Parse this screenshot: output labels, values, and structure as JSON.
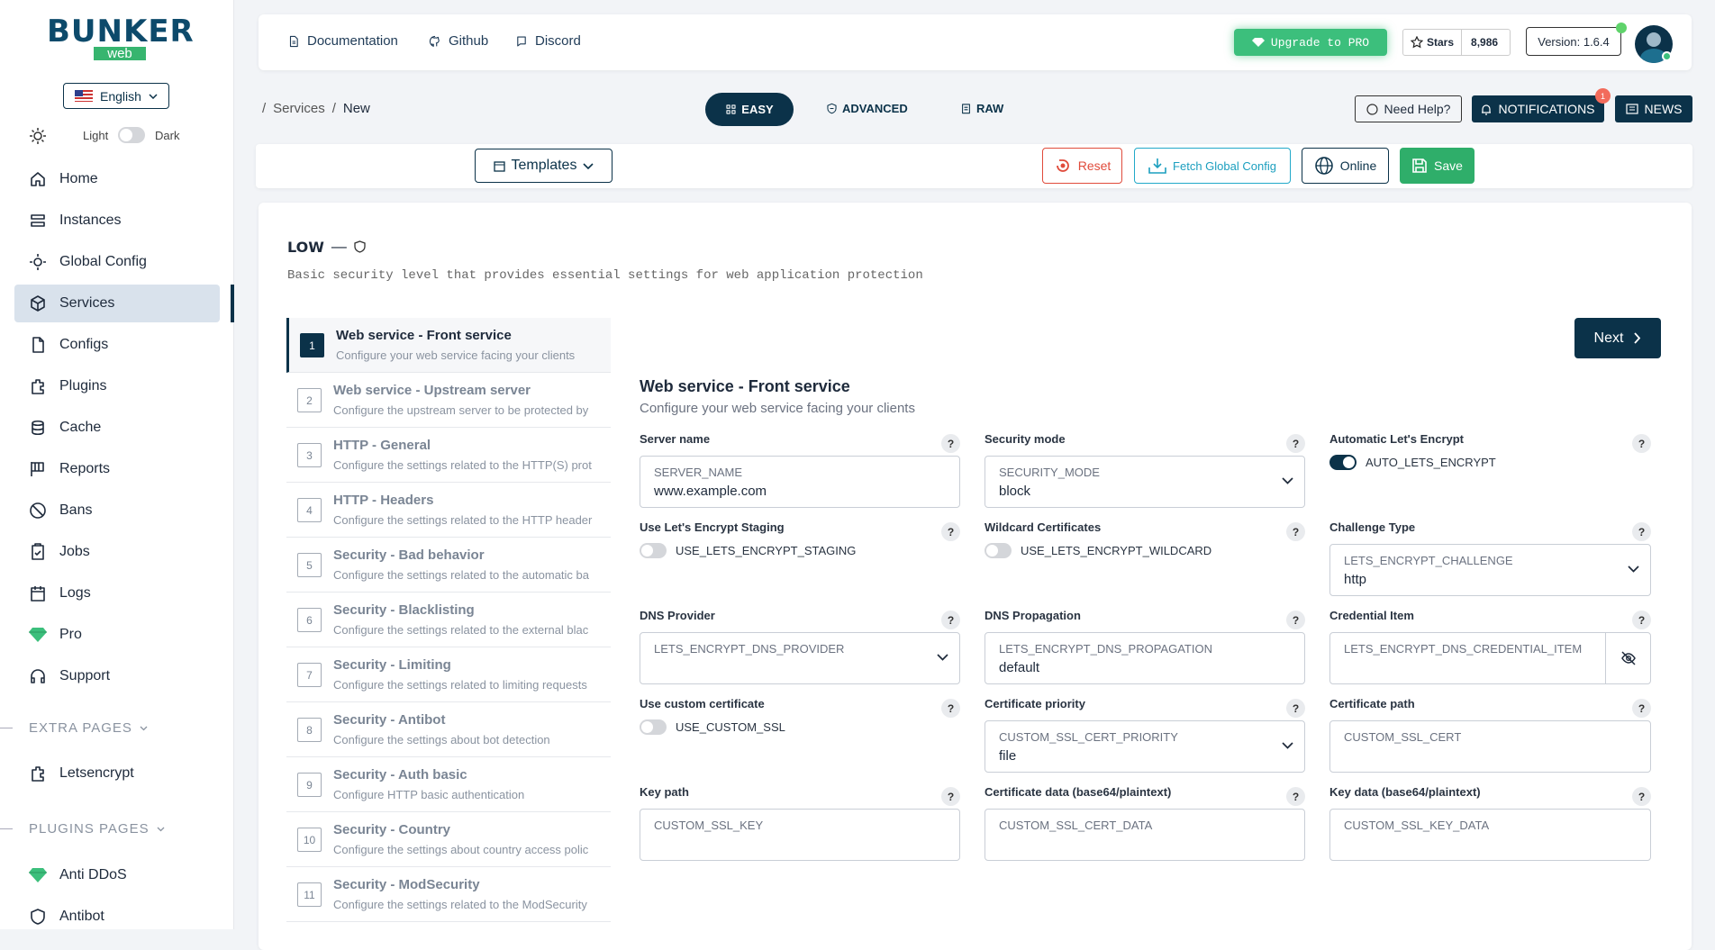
{
  "sidebar": {
    "logo": {
      "title": "BUNKER",
      "subtitle": "web"
    },
    "language": "English",
    "theme": {
      "light": "Light",
      "dark": "Dark"
    },
    "nav": [
      "Home",
      "Instances",
      "Global Config",
      "Services",
      "Configs",
      "Plugins",
      "Cache",
      "Reports",
      "Bans",
      "Jobs",
      "Logs",
      "Pro",
      "Support"
    ],
    "extra_pages": {
      "title": "EXTRA PAGES",
      "items": [
        "Letsencrypt"
      ]
    },
    "plugins_pages": {
      "title": "PLUGINS PAGES",
      "items": [
        "Anti DDoS",
        "Antibot"
      ]
    }
  },
  "topbar": {
    "links": [
      "Documentation",
      "Github",
      "Discord"
    ],
    "upgrade": "Upgrade to PRO",
    "stars_label": "Stars",
    "stars_count": "8,986",
    "version": "Version: 1.6.4"
  },
  "breadcrumb": {
    "separator": "/",
    "items": [
      "Services",
      "New"
    ]
  },
  "modes": [
    "EASY",
    "ADVANCED",
    "RAW"
  ],
  "header_buttons": {
    "help": "Need Help?",
    "notifications": "NOTIFICATIONS",
    "notification_badge": "1",
    "news": "NEWS"
  },
  "toolbar": {
    "templates": "Templates",
    "reset": "Reset",
    "fetch": "Fetch Global Config",
    "online": "Online",
    "save": "Save"
  },
  "template": {
    "title": "LOW",
    "separator": "—",
    "description": "Basic security level that provides essential settings for web application protection"
  },
  "steps": [
    {
      "number": 1,
      "title": "Web service - Front service",
      "description": "Configure your web service facing your clients"
    },
    {
      "number": 2,
      "title": "Web service - Upstream server",
      "description": "Configure the upstream server to be protected by"
    },
    {
      "number": 3,
      "title": "HTTP - General",
      "description": "Configure the settings related to the HTTP(S) prot"
    },
    {
      "number": 4,
      "title": "HTTP - Headers",
      "description": "Configure the settings related to the HTTP header"
    },
    {
      "number": 5,
      "title": "Security - Bad behavior",
      "description": "Configure the settings related to the automatic ba"
    },
    {
      "number": 6,
      "title": "Security - Blacklisting",
      "description": "Configure the settings related to the external blac"
    },
    {
      "number": 7,
      "title": "Security - Limiting",
      "description": "Configure the settings related to limiting requests"
    },
    {
      "number": 8,
      "title": "Security - Antibot",
      "description": "Configure the settings about bot detection"
    },
    {
      "number": 9,
      "title": "Security - Auth basic",
      "description": "Configure HTTP basic authentication"
    },
    {
      "number": 10,
      "title": "Security - Country",
      "description": "Configure the settings about country access polic"
    },
    {
      "number": 11,
      "title": "Security - ModSecurity",
      "description": "Configure the settings related to the ModSecurity"
    }
  ],
  "next": "Next",
  "form": {
    "title": "Web service - Front service",
    "description": "Configure your web service facing your clients",
    "help_icon": "?",
    "fields": [
      {
        "label": "Server name",
        "kind": "input",
        "setting": "SERVER_NAME",
        "value": "www.example.com"
      },
      {
        "label": "Security mode",
        "kind": "select",
        "setting": "SECURITY_MODE",
        "value": "block"
      },
      {
        "label": "Automatic Let's Encrypt",
        "kind": "toggle",
        "setting": "AUTO_LETS_ENCRYPT",
        "checked": true
      },
      {
        "label": "Use Let's Encrypt Staging",
        "kind": "toggle",
        "setting": "USE_LETS_ENCRYPT_STAGING",
        "checked": false
      },
      {
        "label": "Wildcard Certificates",
        "kind": "toggle",
        "setting": "USE_LETS_ENCRYPT_WILDCARD",
        "checked": false
      },
      {
        "label": "Challenge Type",
        "kind": "select",
        "setting": "LETS_ENCRYPT_CHALLENGE",
        "value": "http"
      },
      {
        "label": "DNS Provider",
        "kind": "select",
        "setting": "LETS_ENCRYPT_DNS_PROVIDER"
      },
      {
        "label": "DNS Propagation",
        "kind": "input",
        "setting": "LETS_ENCRYPT_DNS_PROPAGATION",
        "value": "default"
      },
      {
        "label": "Credential Item",
        "kind": "password",
        "setting": "LETS_ENCRYPT_DNS_CREDENTIAL_ITEM"
      },
      {
        "label": "Use custom certificate",
        "kind": "toggle",
        "setting": "USE_CUSTOM_SSL",
        "checked": false
      },
      {
        "label": "Certificate priority",
        "kind": "select",
        "setting": "CUSTOM_SSL_CERT_PRIORITY",
        "value": "file"
      },
      {
        "label": "Certificate path",
        "kind": "input",
        "setting": "CUSTOM_SSL_CERT"
      },
      {
        "label": "Key path",
        "kind": "input",
        "setting": "CUSTOM_SSL_KEY"
      },
      {
        "label": "Certificate data (base64/plaintext)",
        "kind": "input",
        "setting": "CUSTOM_SSL_CERT_DATA"
      },
      {
        "label": "Key data (base64/plaintext)",
        "kind": "input",
        "setting": "CUSTOM_SSL_KEY_DATA"
      }
    ]
  }
}
